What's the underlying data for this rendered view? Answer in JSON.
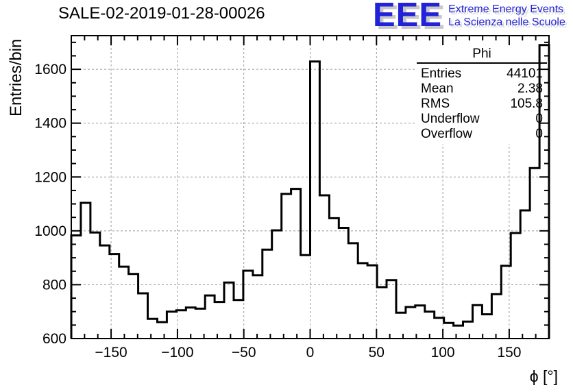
{
  "logo": {
    "acronym": "EEE",
    "line1": "Extreme Energy Events",
    "line2": "La Scienza nelle Scuole",
    "color": "#2222d8"
  },
  "stats": {
    "title": "Phi",
    "rows": [
      {
        "label": "Entries",
        "value": "44101"
      },
      {
        "label": "Mean",
        "value": "2.38"
      },
      {
        "label": "RMS",
        "value": "105.8"
      },
      {
        "label": "Underflow",
        "value": "0"
      },
      {
        "label": "Overflow",
        "value": "0"
      }
    ]
  },
  "chart_data": {
    "type": "bar",
    "histogram": true,
    "title": "SALE-02-2019-01-28-00026",
    "xlabel": "ϕ [°]",
    "ylabel": "Entries/bin",
    "xlim": [
      -180,
      180
    ],
    "ylim": [
      600,
      1725
    ],
    "bins": 50,
    "bin_width_deg": 7.2,
    "bin_start": -180,
    "values": [
      983,
      1104,
      994,
      946,
      914,
      867,
      840,
      768,
      673,
      661,
      700,
      705,
      715,
      711,
      760,
      736,
      808,
      743,
      852,
      835,
      930,
      1002,
      1137,
      1156,
      910,
      1629,
      1132,
      1047,
      1011,
      954,
      880,
      872,
      791,
      817,
      696,
      717,
      723,
      700,
      677,
      658,
      648,
      663,
      724,
      690,
      765,
      870,
      992,
      1076,
      1233,
      1690
    ],
    "x_ticks": [
      -150,
      -100,
      -50,
      0,
      50,
      100,
      150
    ],
    "y_ticks": [
      600,
      800,
      1000,
      1200,
      1400,
      1600
    ],
    "x_minor_step": 10,
    "y_minor_step": 50,
    "grid": true,
    "grid_color": "#999999",
    "line_color": "#000000",
    "legend_position": "none"
  }
}
